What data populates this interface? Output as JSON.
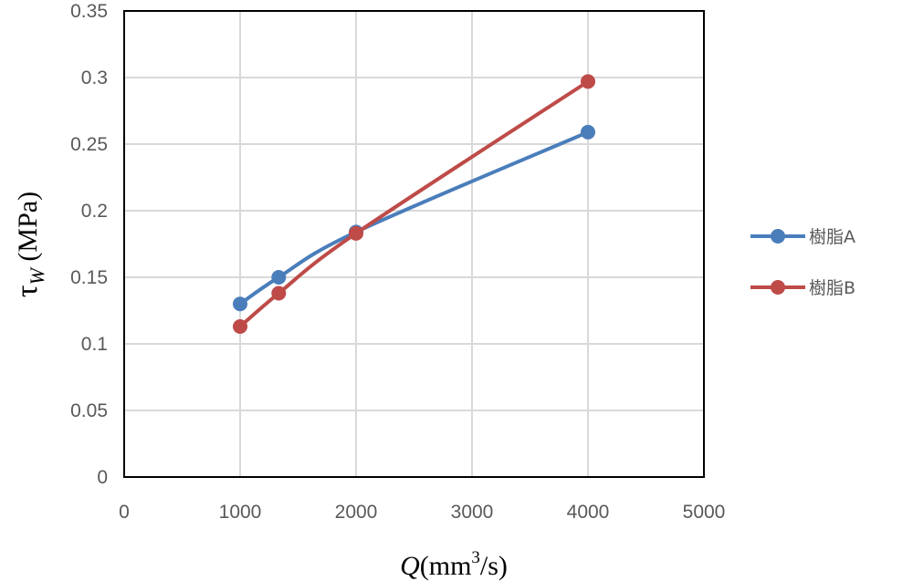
{
  "chart_data": {
    "type": "line",
    "x": [
      1000,
      1333,
      2000,
      4000
    ],
    "series": [
      {
        "name": "樹脂A",
        "color": "#4a7ebb",
        "values": [
          0.13,
          0.15,
          0.184,
          0.259
        ]
      },
      {
        "name": "樹脂B",
        "color": "#be4b48",
        "values": [
          0.113,
          0.138,
          0.183,
          0.297
        ]
      }
    ],
    "xlabel": {
      "var": "Q",
      "unit_pre": "(mm",
      "unit_sup": "3",
      "unit_post": "/s)"
    },
    "ylabel": {
      "sym": "τ",
      "sub": "W",
      "unit": " (MPa)"
    },
    "xlim": [
      0,
      5000
    ],
    "ylim": [
      0,
      0.35
    ],
    "xticks": [
      "0",
      "1000",
      "2000",
      "3000",
      "4000",
      "5000"
    ],
    "yticks": [
      "0",
      "0.05",
      "0.1",
      "0.15",
      "0.2",
      "0.25",
      "0.3",
      "0.35"
    ],
    "grid": true,
    "legend": "right",
    "smooth": true
  }
}
